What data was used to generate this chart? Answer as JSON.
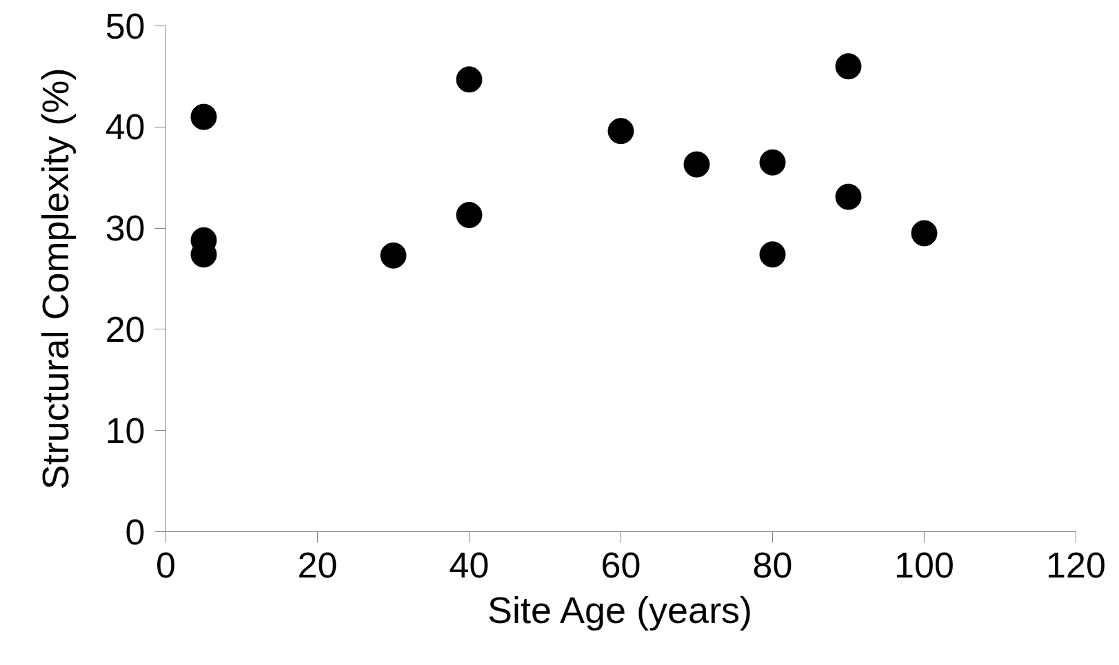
{
  "chart_data": {
    "type": "scatter",
    "xlabel": "Site Age (years)",
    "ylabel": "Structural Complexity (%)",
    "x": [
      5,
      5,
      5,
      30,
      40,
      40,
      60,
      70,
      80,
      80,
      90,
      90,
      100
    ],
    "values": [
      41.0,
      28.8,
      27.4,
      27.3,
      44.7,
      31.3,
      39.6,
      36.3,
      36.5,
      27.4,
      46.0,
      33.1,
      29.5
    ],
    "color": "#000000",
    "marker": "circle",
    "xlim": [
      0,
      120
    ],
    "xticks": [
      0,
      20,
      40,
      60,
      80,
      100,
      120
    ],
    "ylim": [
      0,
      50
    ],
    "yticks": [
      0,
      10,
      20,
      30,
      40,
      50
    ],
    "grid": false
  }
}
